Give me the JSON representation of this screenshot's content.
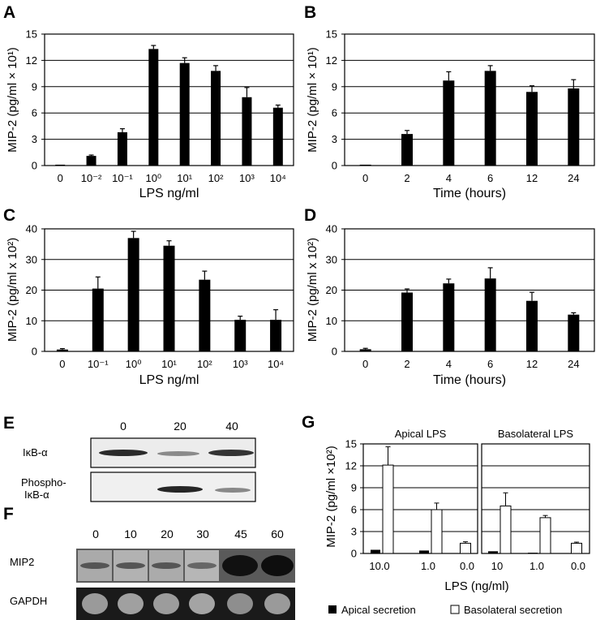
{
  "panels": {
    "A": "A",
    "B": "B",
    "C": "C",
    "D": "D",
    "E": "E",
    "F": "F",
    "G": "G"
  },
  "chart_data": [
    {
      "panel": "A",
      "type": "bar",
      "ylabel": "MIP-2 (pg/ml × 10¹)",
      "xlabel": "LPS ng/ml",
      "ylim": [
        0,
        15
      ],
      "yticks": [
        0,
        3,
        6,
        9,
        12,
        15
      ],
      "categories": [
        "0",
        "10⁻²",
        "10⁻¹",
        "10⁰",
        "10¹",
        "10²",
        "10³",
        "10⁴"
      ],
      "values": [
        0.1,
        1.1,
        3.8,
        13.3,
        11.7,
        10.8,
        7.8,
        6.6
      ],
      "errors": [
        0,
        0.1,
        0.4,
        0.4,
        0.6,
        0.6,
        1.1,
        0.3
      ]
    },
    {
      "panel": "B",
      "type": "bar",
      "ylabel": "MIP-2 (pg/ml × 10¹)",
      "xlabel": "Time (hours)",
      "ylim": [
        0,
        15
      ],
      "yticks": [
        0,
        3,
        6,
        9,
        12,
        15
      ],
      "categories": [
        "0",
        "2",
        "4",
        "6",
        "12",
        "24"
      ],
      "values": [
        0.1,
        3.6,
        9.7,
        10.8,
        8.4,
        8.8
      ],
      "errors": [
        0,
        0.4,
        1.0,
        0.6,
        0.7,
        1.0
      ]
    },
    {
      "panel": "C",
      "type": "bar",
      "ylabel": "MIP-2 (pg/ml x 10²)",
      "xlabel": "LPS ng/ml",
      "ylim": [
        0,
        40
      ],
      "yticks": [
        0,
        10,
        20,
        30,
        40
      ],
      "categories": [
        "0",
        "10⁻¹",
        "10⁰",
        "10¹",
        "10²",
        "10³",
        "10⁴"
      ],
      "values": [
        0.6,
        20.5,
        37,
        34.5,
        23.4,
        10.3,
        10.3
      ],
      "errors": [
        0.3,
        3.8,
        2.2,
        1.6,
        2.8,
        1.2,
        3.3
      ]
    },
    {
      "panel": "D",
      "type": "bar",
      "ylabel": "MIP-2 (pg/ml x 10²)",
      "xlabel": "Time (hours)",
      "ylim": [
        0,
        40
      ],
      "yticks": [
        0,
        10,
        20,
        30,
        40
      ],
      "categories": [
        "0",
        "2",
        "4",
        "6",
        "12",
        "24"
      ],
      "values": [
        0.7,
        19.2,
        22.2,
        23.8,
        16.5,
        12
      ],
      "errors": [
        0.3,
        1.2,
        1.4,
        3.5,
        2.8,
        0.6
      ]
    },
    {
      "panel": "G",
      "type": "bar",
      "ylabel": "MIP-2 (pg/ml ×10²)",
      "xlabel": "LPS (ng/ml)",
      "ylim": [
        0,
        15
      ],
      "yticks": [
        0,
        3,
        6,
        9,
        12,
        15
      ],
      "subplots": [
        {
          "title": "Apical LPS",
          "categories": [
            "10.0",
            "1.0",
            "0.0"
          ],
          "series": [
            {
              "name": "Apical secretion",
              "values": [
                0.5,
                0.4,
                0
              ],
              "errors": [
                0.1,
                0.1,
                0
              ]
            },
            {
              "name": "Basolateral secretion",
              "values": [
                12.1,
                6.0,
                1.4
              ],
              "errors": [
                2.5,
                0.9,
                0.2
              ]
            }
          ]
        },
        {
          "title": "Basolateral LPS",
          "categories": [
            "10",
            "1.0",
            "0.0"
          ],
          "series": [
            {
              "name": "Apical secretion",
              "values": [
                0.3,
                0.1,
                0
              ],
              "errors": [
                0.1,
                0.05,
                0
              ]
            },
            {
              "name": "Basolateral secretion",
              "values": [
                6.5,
                4.9,
                1.4
              ],
              "errors": [
                1.8,
                0.3,
                0.15
              ]
            }
          ]
        }
      ],
      "legend": [
        "Apical secretion",
        "Basolateral secretion"
      ]
    }
  ],
  "blot_E": {
    "timepoints": [
      "0",
      "20",
      "40"
    ],
    "row1_label": "IκB-α",
    "row2_label_line1": "Phospho-",
    "row2_label_line2": "IκB-α"
  },
  "blot_F": {
    "timepoints": [
      "0",
      "10",
      "20",
      "30",
      "45",
      "60"
    ],
    "row1_label": "MIP2",
    "row2_label": "GAPDH"
  },
  "colors": {
    "bar": "#000000",
    "open_bar": "#ffffff",
    "grid": "#000000"
  }
}
